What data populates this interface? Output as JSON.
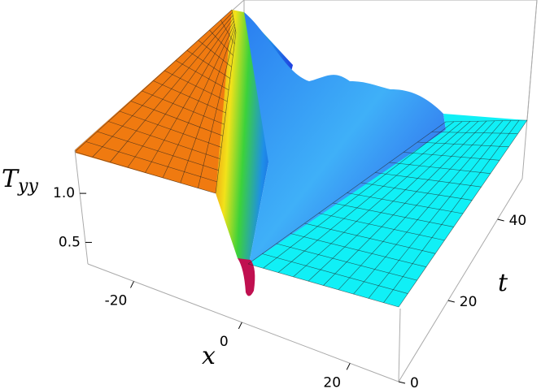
{
  "chart_data": {
    "type": "surface3d",
    "xlabel": "x",
    "ylabel": "t",
    "zlabel": {
      "base": "T",
      "sub": "yy"
    },
    "xlim": [
      -28.5,
      29
    ],
    "xticks": [
      -20,
      0,
      20
    ],
    "ylim": [
      0,
      50
    ],
    "yticks": [
      0,
      20,
      40
    ],
    "zlim": [
      0.28,
      1.44
    ],
    "zticks": [
      0.5,
      {
        "value": 1,
        "label": "1.0"
      }
    ]
  }
}
